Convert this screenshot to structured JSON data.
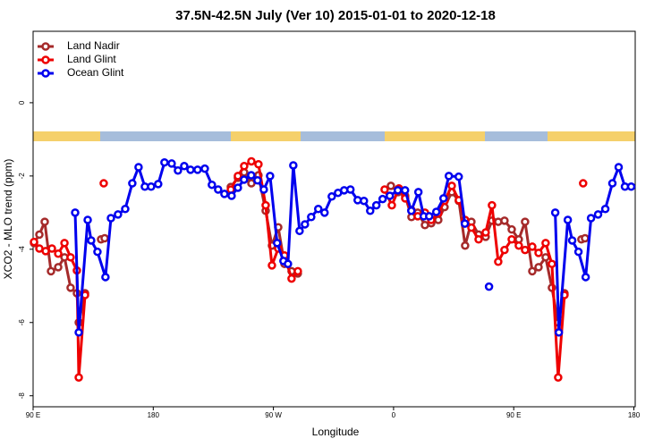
{
  "chart_data": {
    "type": "line",
    "title": "37.5N-42.5N July (Ver 10)   2015-01-01 to 2020-12-18",
    "x_label": "Longitude",
    "y_label": "XCO2 - MLO trend (ppm)",
    "xlim": [
      90,
      541
    ],
    "ylim": [
      -8.3,
      1.95
    ],
    "xticks": [
      {
        "value": 90,
        "label": "90 E"
      },
      {
        "value": 180,
        "label": "180"
      },
      {
        "value": 270,
        "label": "90 W"
      },
      {
        "value": 360,
        "label": "0"
      },
      {
        "value": 450,
        "label": "90 E"
      },
      {
        "value": 540,
        "label": "180"
      }
    ],
    "yticks": [
      0,
      -2,
      -4,
      -6,
      -8
    ],
    "legend": "top-left",
    "series": [
      {
        "name": "Land Nadir",
        "color": "#a52a2a",
        "x": [
          90.7,
          94.7,
          98.7,
          103.4,
          108.8,
          113.5,
          118.1,
          122.8,
          124.2,
          128.9,
          null,
          140.9,
          143.6,
          null,
          238.1,
          243.4,
          248.1,
          253.5,
          258.8,
          264.2,
          268.9,
          273.6,
          278.3,
          283.6,
          288.3,
          null,
          358.0,
          363.4,
          368.7,
          373.4,
          378.1,
          383.5,
          388.2,
          393.5,
          398.2,
          403.6,
          408.9,
          413.6,
          418.3,
          423.7,
          429.0,
          433.7,
          438.4,
          443.1,
          448.5,
          453.8,
          458.5,
          463.9,
          468.6,
          473.9,
          478.6,
          483.3,
          488.0,
          null,
          500.7,
          503.4
        ],
        "values": [
          -3.83,
          -3.6,
          -3.25,
          -4.6,
          -4.49,
          -4.22,
          -5.05,
          -5.2,
          -6.0,
          -5.2,
          null,
          -3.73,
          -3.7,
          null,
          -2.3,
          -2.05,
          -1.9,
          -2.2,
          -1.98,
          -2.95,
          -3.9,
          -3.4,
          -4.4,
          -4.6,
          -4.66,
          null,
          -2.27,
          -2.44,
          -2.54,
          -3.12,
          -3.0,
          -3.34,
          -3.29,
          -3.2,
          -2.85,
          -2.44,
          -2.68,
          -3.9,
          -3.25,
          -3.6,
          -3.66,
          -3.22,
          -3.25,
          -3.22,
          -3.46,
          -3.73,
          -3.25,
          -4.6,
          -4.49,
          -4.22,
          -5.05,
          -6.0,
          -5.2,
          null,
          -3.73,
          -3.7
        ]
      },
      {
        "name": "Land Glint",
        "color": "#ee0000",
        "x": [
          90.7,
          94.7,
          99.4,
          104.1,
          108.8,
          113.5,
          118.1,
          122.8,
          124.2,
          128.9,
          null,
          142.9,
          null,
          238.1,
          243.4,
          248.1,
          253.5,
          258.8,
          264.2,
          268.9,
          273.6,
          278.3,
          283.6,
          288.3,
          null,
          353.3,
          358.7,
          364.0,
          368.7,
          373.4,
          378.1,
          383.5,
          388.2,
          393.5,
          398.2,
          403.6,
          408.9,
          413.6,
          418.3,
          423.7,
          429.0,
          433.7,
          438.4,
          443.1,
          448.5,
          453.8,
          458.5,
          463.9,
          468.6,
          473.9,
          478.6,
          483.3,
          488.0,
          null,
          502.0
        ],
        "values": [
          -3.8,
          -3.98,
          -4.05,
          -3.98,
          -4.12,
          -3.83,
          -4.22,
          -4.58,
          -7.5,
          -5.25,
          null,
          -2.2,
          null,
          -2.37,
          -2.0,
          -1.73,
          -1.6,
          -1.68,
          -2.8,
          -4.44,
          -3.98,
          -4.17,
          -4.8,
          -4.6,
          null,
          -2.37,
          -2.8,
          -2.34,
          -2.61,
          -2.93,
          -3.1,
          -3.0,
          -3.2,
          -3.02,
          -2.68,
          -2.27,
          -2.66,
          -3.2,
          -3.41,
          -3.73,
          -3.54,
          -2.8,
          -4.34,
          -4.02,
          -3.73,
          -3.9,
          -4.02,
          -3.93,
          -4.1,
          -3.83,
          -4.4,
          -7.5,
          -5.25,
          null,
          -2.2
        ]
      },
      {
        "name": "Ocean Glint",
        "color": "#0000ee",
        "x": [
          121.5,
          124.2,
          130.9,
          133.5,
          138.2,
          144.2,
          148.3,
          153.6,
          159.0,
          164.3,
          169.0,
          173.7,
          178.4,
          183.7,
          188.4,
          193.8,
          198.5,
          203.2,
          207.9,
          213.2,
          218.6,
          223.9,
          228.6,
          233.3,
          238.7,
          243.4,
          248.0,
          253.4,
          258.1,
          262.8,
          267.5,
          272.8,
          277.5,
          280.9,
          284.9,
          289.6,
          293.6,
          298.3,
          303.6,
          308.3,
          313.7,
          318.4,
          323.0,
          327.7,
          333.1,
          337.8,
          342.5,
          347.1,
          351.8,
          357.2,
          363.2,
          368.6,
          373.3,
          378.6,
          382.6,
          386.7,
          392.0,
          397.4,
          401.4,
          408.8,
          413.4,
          null,
          431.5,
          null,
          481.1,
          483.8,
          490.5,
          493.8,
          498.5,
          503.9,
          507.9,
          513.2,
          518.6,
          523.9,
          528.6,
          533.3,
          538.0
        ],
        "values": [
          -3.0,
          -6.27,
          -3.2,
          -3.76,
          -4.07,
          -4.76,
          -3.15,
          -3.05,
          -2.9,
          -2.2,
          -1.76,
          -2.29,
          -2.29,
          -2.22,
          -1.63,
          -1.66,
          -1.85,
          -1.73,
          -1.83,
          -1.83,
          -1.8,
          -2.24,
          -2.37,
          -2.49,
          -2.54,
          -2.32,
          -2.1,
          -1.98,
          -2.12,
          -2.37,
          -2.0,
          -3.83,
          -4.32,
          -4.4,
          -1.71,
          -3.5,
          -3.32,
          -3.12,
          -2.9,
          -3.0,
          -2.56,
          -2.46,
          -2.39,
          -2.37,
          -2.66,
          -2.68,
          -2.95,
          -2.8,
          -2.63,
          -2.54,
          -2.39,
          -2.39,
          -2.95,
          -2.44,
          -3.1,
          -3.1,
          -2.98,
          -2.61,
          -2.0,
          -2.02,
          -3.3,
          null,
          -5.02,
          null,
          -3.0,
          -6.27,
          -3.2,
          -3.76,
          -4.07,
          -4.76,
          -3.15,
          -3.05,
          -2.9,
          -2.2,
          -1.76,
          -2.29,
          -2.29
        ]
      }
    ]
  }
}
